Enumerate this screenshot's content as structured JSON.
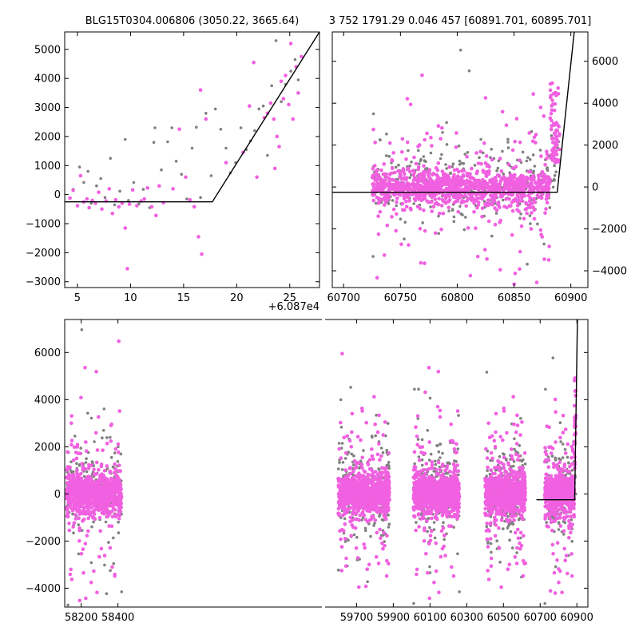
{
  "chart_data": [
    {
      "type": "scatter",
      "title": "BLG15T0304.006806 (3050.22, 3665.64)",
      "x_offset_label": "+6.087e4",
      "xlim": [
        3.8,
        27.8
      ],
      "ylim": [
        -3200,
        5600
      ],
      "xticks": [
        5,
        10,
        15,
        20,
        25
      ],
      "xtick_labels": [
        "5",
        "10",
        "15",
        "20",
        "25"
      ],
      "yticks": [
        -3000,
        -2000,
        -1000,
        0,
        1000,
        2000,
        3000,
        4000,
        5000
      ],
      "ytick_labels": [
        "−3000",
        "−2000",
        "−1000",
        "0",
        "1000",
        "2000",
        "3000",
        "4000",
        "5000"
      ],
      "model_line": [
        [
          3.8,
          -250
        ],
        [
          17.7,
          -250
        ],
        [
          27.8,
          5600
        ]
      ],
      "series": [
        {
          "color": "#808080",
          "points": [
            [
              4.6,
              180
            ],
            [
              5.2,
              950
            ],
            [
              5.6,
              420
            ],
            [
              6.0,
              800
            ],
            [
              6.3,
              -300
            ],
            [
              6.8,
              300
            ],
            [
              7.2,
              550
            ],
            [
              7.6,
              -100
            ],
            [
              8.1,
              1250
            ],
            [
              8.5,
              -350
            ],
            [
              9.0,
              120
            ],
            [
              9.5,
              1900
            ],
            [
              9.8,
              -200
            ],
            [
              10.3,
              420
            ],
            [
              10.8,
              -320
            ],
            [
              11.2,
              180
            ],
            [
              11.8,
              -450
            ],
            [
              12.2,
              1800
            ],
            [
              12.3,
              2300
            ],
            [
              12.9,
              850
            ],
            [
              13.5,
              1820
            ],
            [
              13.9,
              2300
            ],
            [
              14.3,
              1150
            ],
            [
              14.8,
              700
            ],
            [
              15.3,
              -150
            ],
            [
              15.8,
              1600
            ],
            [
              16.2,
              2320
            ],
            [
              16.6,
              -100
            ],
            [
              17.1,
              2800
            ],
            [
              17.6,
              650
            ],
            [
              18.0,
              2950
            ],
            [
              18.5,
              2250
            ],
            [
              19.0,
              1600
            ],
            [
              19.4,
              750
            ],
            [
              19.9,
              1100
            ],
            [
              20.4,
              2300
            ],
            [
              20.9,
              1550
            ],
            [
              21.3,
              1850
            ],
            [
              21.7,
              2200
            ],
            [
              22.1,
              2950
            ],
            [
              22.5,
              3050
            ],
            [
              22.9,
              1350
            ],
            [
              23.3,
              3750
            ],
            [
              23.7,
              5300
            ],
            [
              24.2,
              3200
            ],
            [
              24.6,
              3800
            ],
            [
              25.1,
              4250
            ],
            [
              25.5,
              4650
            ],
            [
              25.8,
              3950
            ]
          ]
        },
        {
          "color": "#f060e0",
          "points": [
            [
              4.3,
              -120
            ],
            [
              4.6,
              150
            ],
            [
              5.0,
              -380
            ],
            [
              5.3,
              650
            ],
            [
              5.6,
              -250
            ],
            [
              5.9,
              -150
            ],
            [
              6.1,
              -450
            ],
            [
              6.4,
              -200
            ],
            [
              6.7,
              -300
            ],
            [
              7.0,
              80
            ],
            [
              7.3,
              -500
            ],
            [
              7.7,
              -220
            ],
            [
              8.0,
              200
            ],
            [
              8.3,
              -650
            ],
            [
              8.6,
              -180
            ],
            [
              8.9,
              -420
            ],
            [
              9.2,
              -300
            ],
            [
              9.5,
              -1150
            ],
            [
              9.7,
              -2550
            ],
            [
              9.9,
              -330
            ],
            [
              10.2,
              160
            ],
            [
              10.6,
              -380
            ],
            [
              11.0,
              -220
            ],
            [
              11.3,
              -150
            ],
            [
              11.6,
              230
            ],
            [
              12.0,
              -420
            ],
            [
              12.4,
              -720
            ],
            [
              12.7,
              300
            ],
            [
              13.1,
              -280
            ],
            [
              14.0,
              200
            ],
            [
              14.6,
              2250
            ],
            [
              15.2,
              600
            ],
            [
              15.6,
              -180
            ],
            [
              16.0,
              -420
            ],
            [
              16.4,
              -1450
            ],
            [
              16.6,
              3600
            ],
            [
              16.7,
              -2050
            ],
            [
              17.1,
              2600
            ],
            [
              19.0,
              1100
            ],
            [
              20.6,
              1450
            ],
            [
              21.2,
              3050
            ],
            [
              21.6,
              4550
            ],
            [
              21.9,
              600
            ],
            [
              22.6,
              2650
            ],
            [
              22.9,
              2800
            ],
            [
              23.2,
              3150
            ],
            [
              23.5,
              2600
            ],
            [
              23.8,
              2000
            ],
            [
              23.6,
              900
            ],
            [
              24.0,
              1650
            ],
            [
              24.2,
              3900
            ],
            [
              24.4,
              3300
            ],
            [
              24.6,
              4100
            ],
            [
              24.9,
              3100
            ],
            [
              25.1,
              5200
            ],
            [
              25.3,
              2600
            ],
            [
              25.6,
              4400
            ],
            [
              25.8,
              3500
            ],
            [
              26.1,
              4750
            ]
          ]
        }
      ]
    },
    {
      "type": "scatter",
      "title": "3 752 1791.29 0.046 457 [60891.701, 60895.701]",
      "xlim": [
        60690,
        60915
      ],
      "ylim": [
        -4800,
        7400
      ],
      "xticks": [
        60700,
        60750,
        60800,
        60850,
        60900
      ],
      "xtick_labels": [
        "60700",
        "60750",
        "60800",
        "60850",
        "60900"
      ],
      "yticks": [
        -4000,
        -2000,
        0,
        2000,
        4000,
        6000
      ],
      "ytick_labels": [
        "−4000",
        "−2000",
        "0",
        "2000",
        "4000",
        "6000"
      ],
      "model_line": [
        [
          60690,
          -250
        ],
        [
          60888,
          -250
        ],
        [
          60903,
          7400
        ]
      ],
      "clusters": [
        {
          "x_range": [
            60725,
            60890
          ],
          "magenta_n": 1250,
          "gray_n": 300
        }
      ]
    },
    {
      "type": "scatter",
      "xlim": [
        58110,
        60960
      ],
      "ylim": [
        -4800,
        7400
      ],
      "xticks": [
        58200,
        58400,
        59700,
        59900,
        60100,
        60300,
        60500,
        60700,
        60900
      ],
      "xtick_labels": [
        "58200",
        "58400",
        "59700",
        "59900",
        "60100",
        "60300",
        "60500",
        "60700",
        "60900"
      ],
      "yticks": [
        -4000,
        -2000,
        0,
        2000,
        4000,
        6000
      ],
      "ytick_labels": [
        "−4000",
        "−2000",
        "0",
        "2000",
        "4000",
        "6000"
      ],
      "model_line": [
        [
          60680,
          -250
        ],
        [
          60888,
          -250
        ],
        [
          60903,
          7400
        ]
      ],
      "seasons": [
        {
          "x_range": [
            58120,
            58420
          ],
          "magenta_n": 900,
          "gray_n": 180
        },
        {
          "x_range": [
            59600,
            59880
          ],
          "magenta_n": 900,
          "gray_n": 200
        },
        {
          "x_range": [
            60010,
            60260
          ],
          "magenta_n": 900,
          "gray_n": 220
        },
        {
          "x_range": [
            60400,
            60620
          ],
          "magenta_n": 800,
          "gray_n": 200
        },
        {
          "x_range": [
            60725,
            60895
          ],
          "magenta_n": 700,
          "gray_n": 160
        }
      ]
    }
  ]
}
